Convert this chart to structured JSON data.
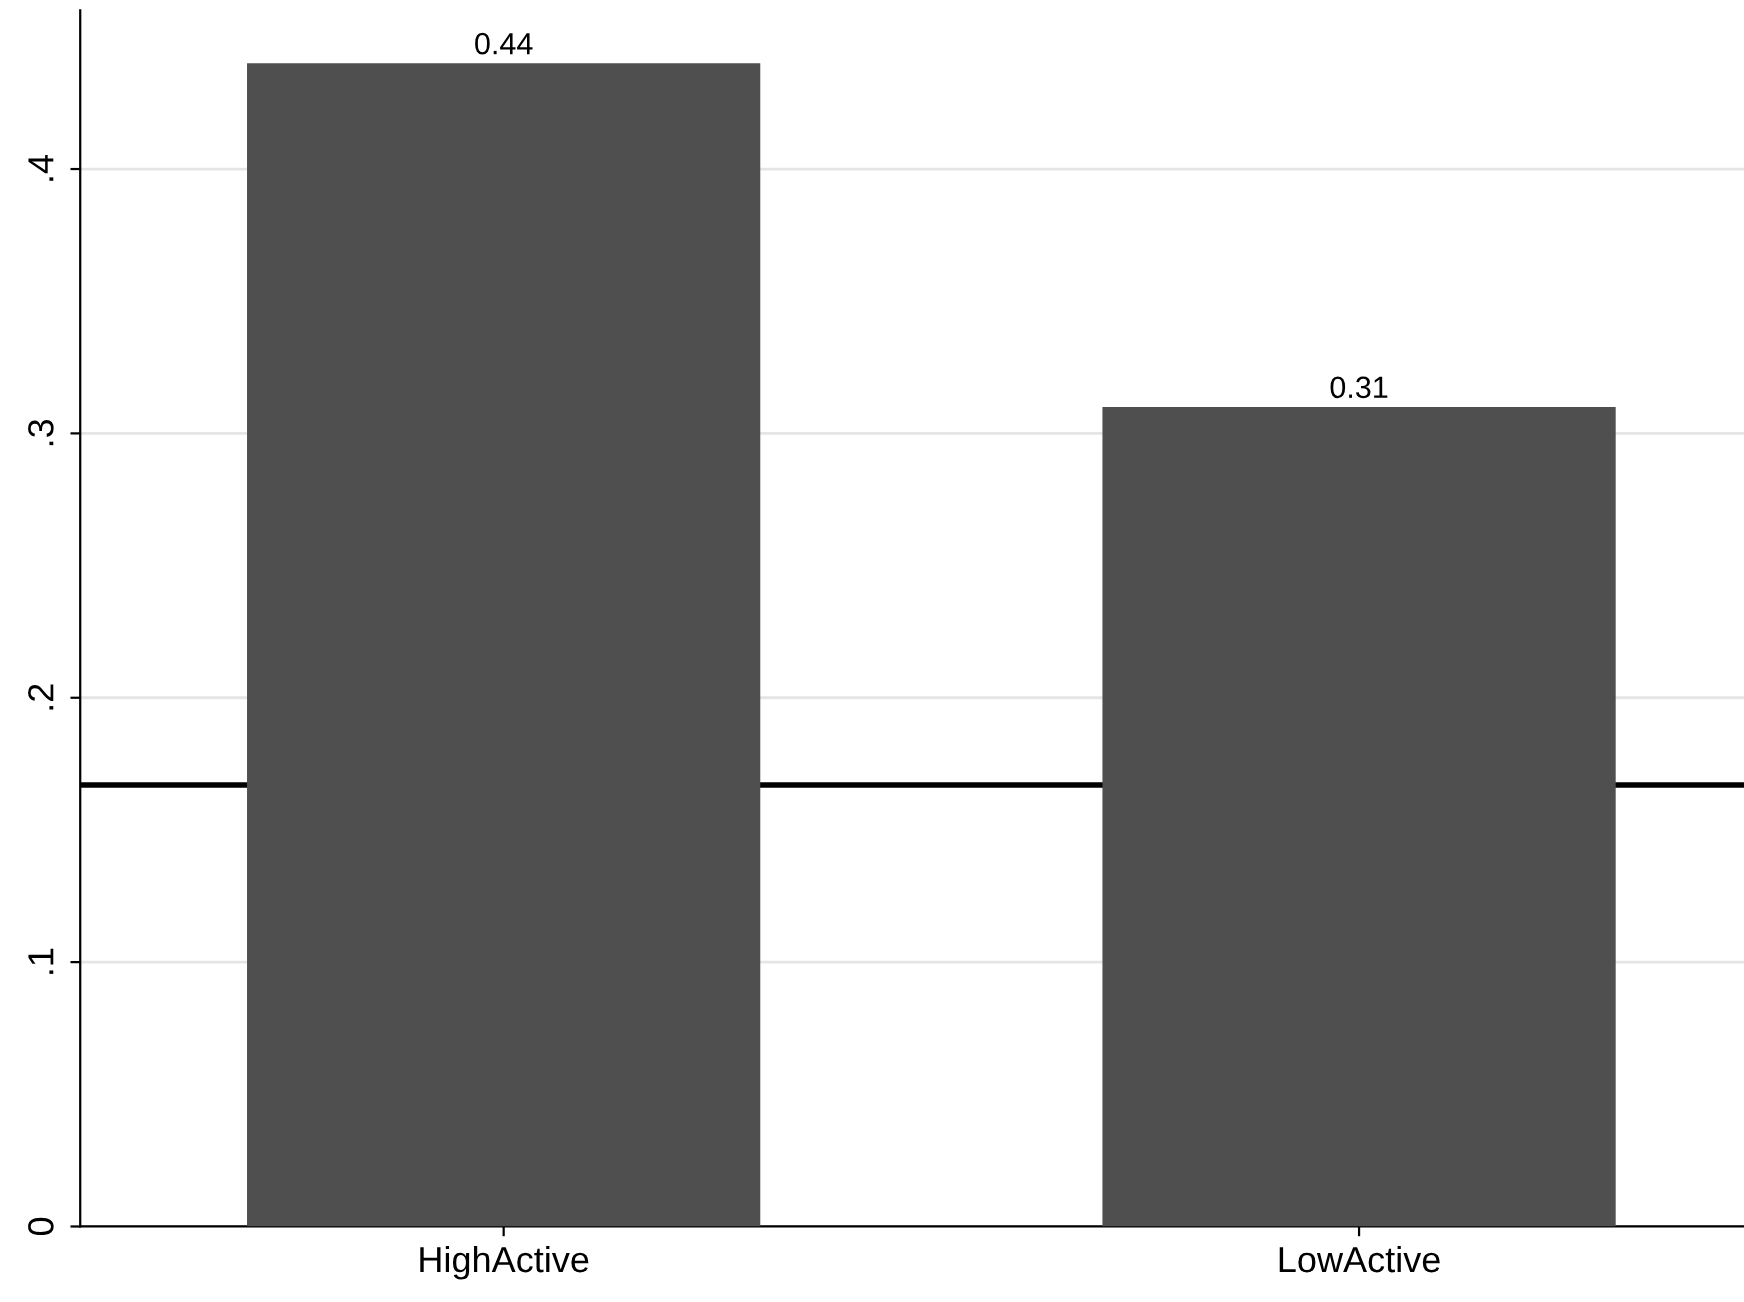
{
  "chart_data": {
    "type": "bar",
    "categories": [
      "HighActive",
      "LowActive"
    ],
    "values": [
      0.44,
      0.31
    ],
    "color": "#4f4f4f",
    "data_labels": true,
    "ylim": [
      0,
      0.46
    ],
    "yticks": [
      {
        "value": 0,
        "label": "0"
      },
      {
        "value": 0.1,
        "label": ".1"
      },
      {
        "value": 0.2,
        "label": ".2"
      },
      {
        "value": 0.3,
        "label": ".3"
      },
      {
        "value": 0.4,
        "label": ".4"
      }
    ],
    "grid": "y",
    "ref_lines": [
      {
        "axis": "y",
        "value": 0.167,
        "color": "#000000"
      }
    ]
  }
}
